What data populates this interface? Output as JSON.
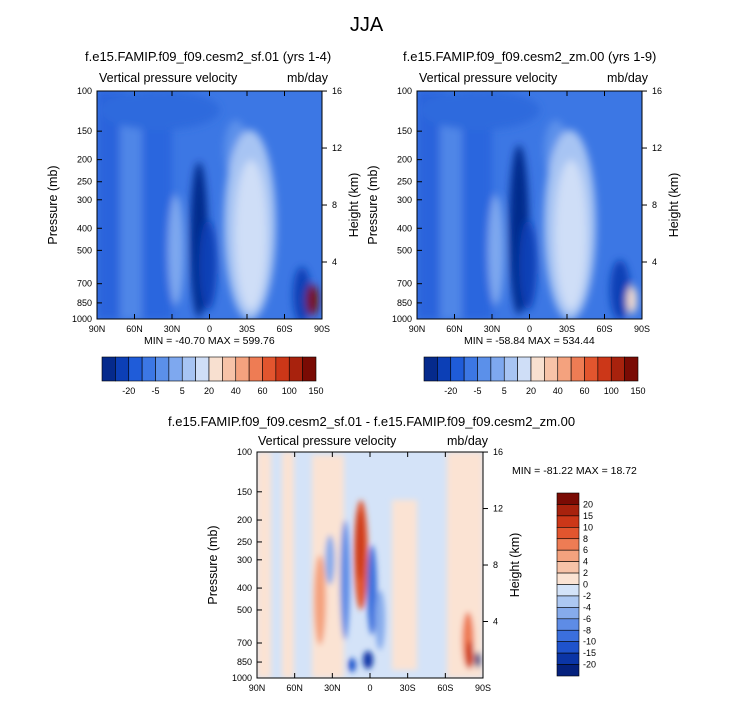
{
  "page": {
    "title": "JJA"
  },
  "color_legend": {
    "main_labels": [
      "-20",
      "-5",
      "5",
      "20",
      "40",
      "60",
      "100",
      "150"
    ],
    "diff_labels": [
      "20",
      "15",
      "10",
      "8",
      "6",
      "4",
      "2",
      "0",
      "-2",
      "-4",
      "-6",
      "-8",
      "-10",
      "-15",
      "-20"
    ],
    "main_colors": [
      "#052a8c",
      "#0c3fb6",
      "#1f5cd9",
      "#3c77e4",
      "#5b90ea",
      "#7ea8ef",
      "#a7c4f3",
      "#cfdef7",
      "#f8e0d0",
      "#f7c3a8",
      "#f4a27e",
      "#ee7c54",
      "#e2552e",
      "#cc3718",
      "#a8220d",
      "#7a0b04"
    ],
    "diff_colors": [
      "#7a0b04",
      "#a8220d",
      "#cc3718",
      "#e2552e",
      "#ee7c54",
      "#f4a27e",
      "#f7c3a8",
      "#fbe3d3",
      "#d4e3f8",
      "#adc8f2",
      "#86abec",
      "#5e8ce6",
      "#3b6fdd",
      "#1f53cc",
      "#0b35a6",
      "#05217d"
    ]
  },
  "chart_data": [
    {
      "type": "heatmap",
      "panel": "top-left",
      "title": "f.e15.FAMIP.f09_f09.cesm2_sf.01 (yrs 1-4)",
      "left_subtitle": "Vertical pressure velocity",
      "right_subtitle": "mb/day",
      "ylabel": "Pressure (mb)",
      "right_ylabel": "Height (km)",
      "x_ticks": [
        "90N",
        "60N",
        "30N",
        "0",
        "30S",
        "60S",
        "90S"
      ],
      "y_ticks": [
        "100",
        "150",
        "200",
        "250",
        "300",
        "400",
        "500",
        "700",
        "850",
        "1000"
      ],
      "y_ticks_right": [
        "16",
        "12",
        "8",
        "4"
      ],
      "stats": "MIN = -40.70   MAX = 599.76",
      "xlim": [
        90,
        -90
      ],
      "ylim": [
        1000,
        100
      ]
    },
    {
      "type": "heatmap",
      "panel": "top-right",
      "title": "f.e15.FAMIP.f09_f09.cesm2_zm.00 (yrs 1-9)",
      "left_subtitle": "Vertical pressure velocity",
      "right_subtitle": "mb/day",
      "ylabel": "Pressure (mb)",
      "right_ylabel": "Height (km)",
      "x_ticks": [
        "90N",
        "60N",
        "30N",
        "0",
        "30S",
        "60S",
        "90S"
      ],
      "y_ticks": [
        "100",
        "150",
        "200",
        "250",
        "300",
        "400",
        "500",
        "700",
        "850",
        "1000"
      ],
      "y_ticks_right": [
        "16",
        "12",
        "8",
        "4"
      ],
      "stats": "MIN = -58.84   MAX = 534.44",
      "xlim": [
        90,
        -90
      ],
      "ylim": [
        1000,
        100
      ]
    },
    {
      "type": "heatmap",
      "panel": "bottom",
      "title": "f.e15.FAMIP.f09_f09.cesm2_sf.01 - f.e15.FAMIP.f09_f09.cesm2_zm.00",
      "left_subtitle": "Vertical pressure velocity",
      "right_subtitle": "mb/day",
      "ylabel": "Pressure (mb)",
      "right_ylabel": "Height (km)",
      "x_ticks": [
        "90N",
        "60N",
        "30N",
        "0",
        "30S",
        "60S",
        "90S"
      ],
      "y_ticks": [
        "100",
        "150",
        "200",
        "250",
        "300",
        "400",
        "500",
        "700",
        "850",
        "1000"
      ],
      "y_ticks_right": [
        "16",
        "12",
        "8",
        "4"
      ],
      "stats": "MIN = -81.22   MAX = 18.72",
      "xlim": [
        90,
        -90
      ],
      "ylim": [
        1000,
        100
      ]
    }
  ]
}
